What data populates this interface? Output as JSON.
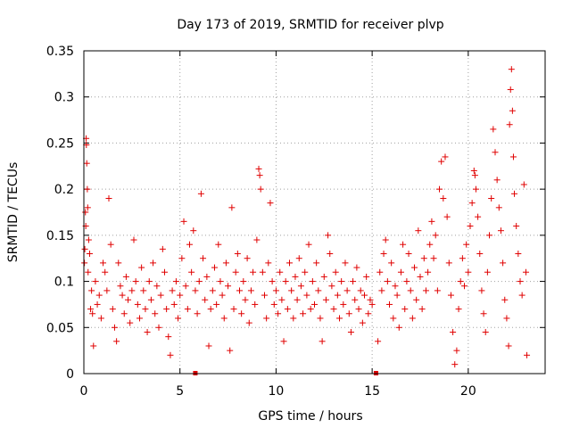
{
  "chart_data": {
    "type": "scatter",
    "title": "Day 173 of 2019, SRMTID for receiver plvp",
    "xlabel": "GPS time / hours",
    "ylabel": "SRMTID / TECUs",
    "xlim": [
      0,
      24
    ],
    "ylim": [
      0,
      0.35
    ],
    "x_ticks": [
      0,
      5,
      10,
      15,
      20
    ],
    "x_tick_labels": [
      "0",
      "5",
      "10",
      "15",
      "20"
    ],
    "y_ticks": [
      0,
      0.05,
      0.1,
      0.15,
      0.2,
      0.25,
      0.3,
      0.35
    ],
    "y_tick_labels": [
      "0",
      "0.05",
      "0.1",
      "0.15",
      "0.2",
      "0.25",
      "0.3",
      "0.35"
    ],
    "grid": true,
    "marker": "+",
    "color": "#e00000",
    "series": [
      {
        "name": "SRMTID",
        "points": [
          [
            0.03,
            0.12
          ],
          [
            0.05,
            0.135
          ],
          [
            0.08,
            0.175
          ],
          [
            0.1,
            0.16
          ],
          [
            0.12,
            0.255
          ],
          [
            0.13,
            0.248
          ],
          [
            0.15,
            0.228
          ],
          [
            0.18,
            0.2
          ],
          [
            0.2,
            0.18
          ],
          [
            0.22,
            0.11
          ],
          [
            0.25,
            0.145
          ],
          [
            0.3,
            0.13
          ],
          [
            0.35,
            0.07
          ],
          [
            0.4,
            0.09
          ],
          [
            0.45,
            0.065
          ],
          [
            0.5,
            0.03
          ],
          [
            0.6,
            0.1
          ],
          [
            0.7,
            0.075
          ],
          [
            0.8,
            0.085
          ],
          [
            0.9,
            0.06
          ],
          [
            1.0,
            0.12
          ],
          [
            1.1,
            0.11
          ],
          [
            1.2,
            0.09
          ],
          [
            1.3,
            0.19
          ],
          [
            1.4,
            0.14
          ],
          [
            1.5,
            0.07
          ],
          [
            1.6,
            0.05
          ],
          [
            1.7,
            0.035
          ],
          [
            1.8,
            0.12
          ],
          [
            1.9,
            0.095
          ],
          [
            2.0,
            0.085
          ],
          [
            2.1,
            0.065
          ],
          [
            2.2,
            0.105
          ],
          [
            2.3,
            0.08
          ],
          [
            2.4,
            0.055
          ],
          [
            2.5,
            0.09
          ],
          [
            2.6,
            0.145
          ],
          [
            2.7,
            0.1
          ],
          [
            2.8,
            0.075
          ],
          [
            2.9,
            0.06
          ],
          [
            3.0,
            0.115
          ],
          [
            3.1,
            0.09
          ],
          [
            3.2,
            0.07
          ],
          [
            3.3,
            0.045
          ],
          [
            3.4,
            0.1
          ],
          [
            3.5,
            0.08
          ],
          [
            3.6,
            0.12
          ],
          [
            3.7,
            0.065
          ],
          [
            3.8,
            0.095
          ],
          [
            3.9,
            0.05
          ],
          [
            4.0,
            0.085
          ],
          [
            4.1,
            0.135
          ],
          [
            4.2,
            0.11
          ],
          [
            4.3,
            0.07
          ],
          [
            4.4,
            0.04
          ],
          [
            4.5,
            0.02
          ],
          [
            4.6,
            0.09
          ],
          [
            4.7,
            0.075
          ],
          [
            4.8,
            0.1
          ],
          [
            4.9,
            0.06
          ],
          [
            5.0,
            0.085
          ],
          [
            5.1,
            0.125
          ],
          [
            5.2,
            0.165
          ],
          [
            5.3,
            0.095
          ],
          [
            5.4,
            0.07
          ],
          [
            5.5,
            0.14
          ],
          [
            5.6,
            0.11
          ],
          [
            5.7,
            0.155
          ],
          [
            5.8,
            0.09
          ],
          [
            5.9,
            0.065
          ],
          [
            6.0,
            0.1
          ],
          [
            6.1,
            0.195
          ],
          [
            6.2,
            0.125
          ],
          [
            6.3,
            0.08
          ],
          [
            6.4,
            0.105
          ],
          [
            6.5,
            0.03
          ],
          [
            6.6,
            0.07
          ],
          [
            6.7,
            0.09
          ],
          [
            6.8,
            0.115
          ],
          [
            6.9,
            0.075
          ],
          [
            7.0,
            0.14
          ],
          [
            7.1,
            0.1
          ],
          [
            7.2,
            0.085
          ],
          [
            7.3,
            0.06
          ],
          [
            7.4,
            0.12
          ],
          [
            7.5,
            0.095
          ],
          [
            7.6,
            0.025
          ],
          [
            7.7,
            0.18
          ],
          [
            7.8,
            0.07
          ],
          [
            7.9,
            0.11
          ],
          [
            8.0,
            0.13
          ],
          [
            8.1,
            0.09
          ],
          [
            8.2,
            0.065
          ],
          [
            8.3,
            0.1
          ],
          [
            8.4,
            0.08
          ],
          [
            8.5,
            0.125
          ],
          [
            8.6,
            0.055
          ],
          [
            8.7,
            0.09
          ],
          [
            8.8,
            0.11
          ],
          [
            8.9,
            0.075
          ],
          [
            9.0,
            0.145
          ],
          [
            9.1,
            0.222
          ],
          [
            9.15,
            0.215
          ],
          [
            9.2,
            0.2
          ],
          [
            9.3,
            0.11
          ],
          [
            9.4,
            0.085
          ],
          [
            9.5,
            0.06
          ],
          [
            9.6,
            0.12
          ],
          [
            9.7,
            0.185
          ],
          [
            9.8,
            0.1
          ],
          [
            9.9,
            0.075
          ],
          [
            10.0,
            0.09
          ],
          [
            10.1,
            0.065
          ],
          [
            10.2,
            0.11
          ],
          [
            10.3,
            0.08
          ],
          [
            10.4,
            0.035
          ],
          [
            10.5,
            0.1
          ],
          [
            10.6,
            0.07
          ],
          [
            10.7,
            0.12
          ],
          [
            10.8,
            0.09
          ],
          [
            10.9,
            0.06
          ],
          [
            11.0,
            0.105
          ],
          [
            11.1,
            0.08
          ],
          [
            11.2,
            0.125
          ],
          [
            11.3,
            0.095
          ],
          [
            11.4,
            0.065
          ],
          [
            11.5,
            0.11
          ],
          [
            11.6,
            0.085
          ],
          [
            11.7,
            0.14
          ],
          [
            11.8,
            0.07
          ],
          [
            11.9,
            0.1
          ],
          [
            12.0,
            0.075
          ],
          [
            12.1,
            0.12
          ],
          [
            12.2,
            0.09
          ],
          [
            12.3,
            0.06
          ],
          [
            12.4,
            0.035
          ],
          [
            12.5,
            0.105
          ],
          [
            12.6,
            0.08
          ],
          [
            12.7,
            0.15
          ],
          [
            12.8,
            0.13
          ],
          [
            12.9,
            0.095
          ],
          [
            13.0,
            0.07
          ],
          [
            13.1,
            0.11
          ],
          [
            13.2,
            0.085
          ],
          [
            13.3,
            0.06
          ],
          [
            13.4,
            0.1
          ],
          [
            13.5,
            0.075
          ],
          [
            13.6,
            0.12
          ],
          [
            13.7,
            0.09
          ],
          [
            13.8,
            0.065
          ],
          [
            13.9,
            0.045
          ],
          [
            14.0,
            0.1
          ],
          [
            14.1,
            0.08
          ],
          [
            14.2,
            0.115
          ],
          [
            14.3,
            0.07
          ],
          [
            14.4,
            0.09
          ],
          [
            14.5,
            0.055
          ],
          [
            14.6,
            0.085
          ],
          [
            14.7,
            0.105
          ],
          [
            14.8,
            0.065
          ],
          [
            14.9,
            0.08
          ],
          [
            15.0,
            0.075
          ],
          [
            15.3,
            0.035
          ],
          [
            15.4,
            0.11
          ],
          [
            15.5,
            0.09
          ],
          [
            15.6,
            0.13
          ],
          [
            15.7,
            0.145
          ],
          [
            15.8,
            0.1
          ],
          [
            15.9,
            0.075
          ],
          [
            16.0,
            0.12
          ],
          [
            16.1,
            0.06
          ],
          [
            16.2,
            0.095
          ],
          [
            16.3,
            0.085
          ],
          [
            16.4,
            0.05
          ],
          [
            16.5,
            0.11
          ],
          [
            16.6,
            0.14
          ],
          [
            16.7,
            0.07
          ],
          [
            16.8,
            0.1
          ],
          [
            16.9,
            0.13
          ],
          [
            17.0,
            0.09
          ],
          [
            17.1,
            0.06
          ],
          [
            17.2,
            0.115
          ],
          [
            17.3,
            0.08
          ],
          [
            17.4,
            0.155
          ],
          [
            17.5,
            0.105
          ],
          [
            17.6,
            0.07
          ],
          [
            17.7,
            0.125
          ],
          [
            17.8,
            0.09
          ],
          [
            17.9,
            0.11
          ],
          [
            18.0,
            0.14
          ],
          [
            18.1,
            0.165
          ],
          [
            18.2,
            0.125
          ],
          [
            18.3,
            0.15
          ],
          [
            18.4,
            0.09
          ],
          [
            18.5,
            0.2
          ],
          [
            18.6,
            0.23
          ],
          [
            18.7,
            0.19
          ],
          [
            18.8,
            0.235
          ],
          [
            18.9,
            0.17
          ],
          [
            19.0,
            0.12
          ],
          [
            19.1,
            0.085
          ],
          [
            19.2,
            0.045
          ],
          [
            19.3,
            0.01
          ],
          [
            19.4,
            0.025
          ],
          [
            19.5,
            0.07
          ],
          [
            19.6,
            0.1
          ],
          [
            19.7,
            0.125
          ],
          [
            19.8,
            0.095
          ],
          [
            19.9,
            0.14
          ],
          [
            20.0,
            0.11
          ],
          [
            20.1,
            0.16
          ],
          [
            20.2,
            0.185
          ],
          [
            20.3,
            0.22
          ],
          [
            20.35,
            0.215
          ],
          [
            20.4,
            0.2
          ],
          [
            20.5,
            0.17
          ],
          [
            20.6,
            0.13
          ],
          [
            20.7,
            0.09
          ],
          [
            20.8,
            0.065
          ],
          [
            20.9,
            0.045
          ],
          [
            21.0,
            0.11
          ],
          [
            21.1,
            0.15
          ],
          [
            21.2,
            0.19
          ],
          [
            21.3,
            0.265
          ],
          [
            21.4,
            0.24
          ],
          [
            21.5,
            0.21
          ],
          [
            21.6,
            0.18
          ],
          [
            21.7,
            0.155
          ],
          [
            21.8,
            0.12
          ],
          [
            21.9,
            0.08
          ],
          [
            22.0,
            0.06
          ],
          [
            22.1,
            0.03
          ],
          [
            22.15,
            0.27
          ],
          [
            22.2,
            0.308
          ],
          [
            22.25,
            0.33
          ],
          [
            22.3,
            0.285
          ],
          [
            22.35,
            0.235
          ],
          [
            22.4,
            0.195
          ],
          [
            22.5,
            0.16
          ],
          [
            22.6,
            0.13
          ],
          [
            22.7,
            0.1
          ],
          [
            22.8,
            0.085
          ],
          [
            22.9,
            0.205
          ],
          [
            23.0,
            0.11
          ],
          [
            23.05,
            0.02
          ]
        ]
      }
    ],
    "data_gaps_x": [
      5.8,
      15.2
    ]
  }
}
